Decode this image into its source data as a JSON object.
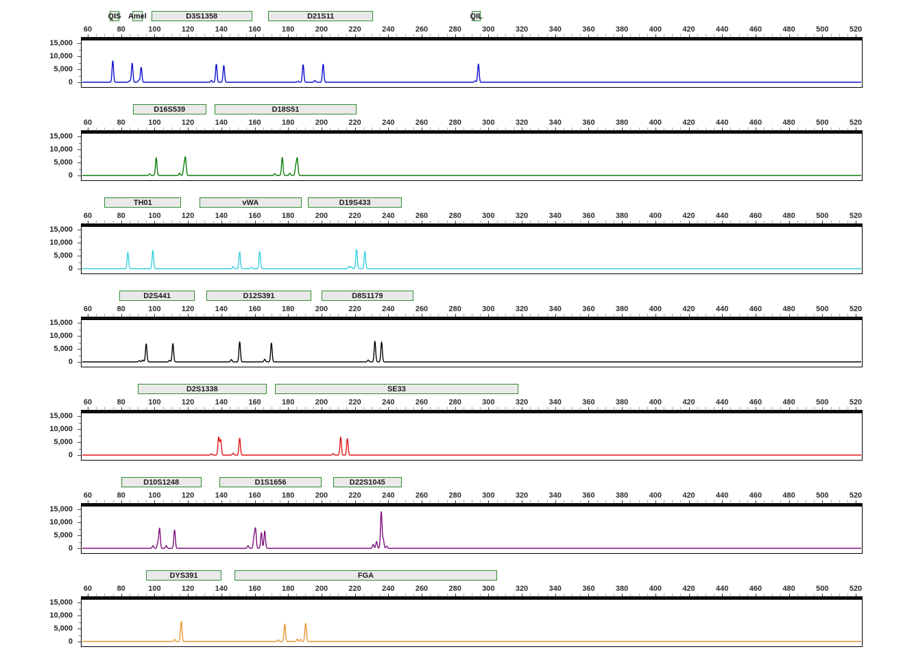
{
  "y_axis": {
    "max": 15000,
    "major_interval": 5000,
    "minor_interval": 2500,
    "labels": [
      "15,000",
      "10,000",
      "5,000",
      "0"
    ]
  },
  "x_axis": {
    "min": 60,
    "max": 520,
    "major_interval": 20,
    "minor_interval": 5,
    "labels": [
      "60",
      "80",
      "100",
      "120",
      "140",
      "160",
      "180",
      "200",
      "220",
      "240",
      "260",
      "280",
      "300",
      "320",
      "340",
      "360",
      "380",
      "400",
      "420",
      "440",
      "460",
      "480",
      "500",
      "520"
    ]
  },
  "styles": {
    "marker_fill": "#e9e9e9",
    "marker_border": "#2e8b2e",
    "axis_bar": "#0e0e0e"
  },
  "chart_data": [
    {
      "type": "line",
      "name": "dye-blue",
      "color": "#0a0acd",
      "markers": [
        {
          "label": "QIS",
          "start": 73,
          "end": 79
        },
        {
          "label": "Amel",
          "start": 86.5,
          "end": 93
        },
        {
          "label": "D3S1358",
          "start": 98,
          "end": 158.5
        },
        {
          "label": "D21S11",
          "start": 168,
          "end": 231
        },
        {
          "label": "QIL",
          "start": 290,
          "end": 295.5
        }
      ],
      "peaks": [
        [
          75,
          8200
        ],
        [
          85,
          500
        ],
        [
          86.6,
          7300
        ],
        [
          90.6,
          800
        ],
        [
          92,
          5700
        ],
        [
          134,
          700
        ],
        [
          137,
          6900
        ],
        [
          141.5,
          6400
        ],
        [
          186,
          400
        ],
        [
          189,
          6700
        ],
        [
          196,
          700
        ],
        [
          201,
          6900
        ],
        [
          292,
          500
        ],
        [
          294,
          7000
        ]
      ]
    },
    {
      "type": "line",
      "name": "dye-green",
      "color": "#0a7d0a",
      "markers": [
        {
          "label": "D16S539",
          "start": 87,
          "end": 131
        },
        {
          "label": "D18S51",
          "start": 136,
          "end": 221
        }
      ],
      "peaks": [
        [
          97,
          600
        ],
        [
          101,
          6800
        ],
        [
          115,
          900
        ],
        [
          117.6,
          3200
        ],
        [
          118.5,
          6700
        ],
        [
          172,
          700
        ],
        [
          176.5,
          6900
        ],
        [
          181,
          900
        ],
        [
          184.6,
          3400
        ],
        [
          185.5,
          6300
        ]
      ]
    },
    {
      "type": "line",
      "name": "dye-cyan",
      "color": "#35cfe0",
      "markers": [
        {
          "label": "TH01",
          "start": 70,
          "end": 116
        },
        {
          "label": "vWA",
          "start": 127,
          "end": 188
        },
        {
          "label": "D19S433",
          "start": 192,
          "end": 248
        }
      ],
      "peaks": [
        [
          84,
          6200
        ],
        [
          99,
          7000
        ],
        [
          147,
          800
        ],
        [
          151,
          6400
        ],
        [
          158,
          500
        ],
        [
          163,
          6600
        ],
        [
          216.5,
          900
        ],
        [
          218,
          700
        ],
        [
          221,
          7400
        ],
        [
          226,
          6600
        ]
      ]
    },
    {
      "type": "line",
      "name": "dye-black",
      "color": "#000000",
      "markers": [
        {
          "label": "D2S441",
          "start": 79,
          "end": 124
        },
        {
          "label": "D12S391",
          "start": 131,
          "end": 194
        },
        {
          "label": "D8S1179",
          "start": 200,
          "end": 255
        }
      ],
      "peaks": [
        [
          91,
          500
        ],
        [
          93,
          700
        ],
        [
          95,
          6900
        ],
        [
          109,
          600
        ],
        [
          111,
          7000
        ],
        [
          146,
          900
        ],
        [
          151,
          7700
        ],
        [
          166,
          1000
        ],
        [
          170,
          7200
        ],
        [
          228,
          700
        ],
        [
          232,
          7900
        ],
        [
          236,
          7600
        ]
      ]
    },
    {
      "type": "line",
      "name": "dye-red",
      "color": "#e11212",
      "markers": [
        {
          "label": "D2S1338",
          "start": 90,
          "end": 167
        },
        {
          "label": "SE33",
          "start": 172,
          "end": 318
        }
      ],
      "peaks": [
        [
          134,
          500
        ],
        [
          138.4,
          6800
        ],
        [
          139.6,
          5800
        ],
        [
          147,
          700
        ],
        [
          151,
          6500
        ],
        [
          207,
          600
        ],
        [
          211.5,
          6900
        ],
        [
          215.5,
          6300
        ]
      ]
    },
    {
      "type": "line",
      "name": "dye-purple",
      "color": "#7d0c7d",
      "markers": [
        {
          "label": "D10S1248",
          "start": 80,
          "end": 128
        },
        {
          "label": "D1S1656",
          "start": 139,
          "end": 200
        },
        {
          "label": "D22S1045",
          "start": 207,
          "end": 248
        }
      ],
      "peaks": [
        [
          99,
          1000
        ],
        [
          102,
          2000
        ],
        [
          103,
          7600
        ],
        [
          107,
          1000
        ],
        [
          112,
          7000
        ],
        [
          156,
          1000
        ],
        [
          159.6,
          4200
        ],
        [
          160.5,
          7200
        ],
        [
          164,
          6000
        ],
        [
          166,
          6600
        ],
        [
          231,
          1500
        ],
        [
          233,
          2600
        ],
        [
          235.8,
          14000
        ],
        [
          237,
          3400
        ],
        [
          239,
          800
        ]
      ]
    },
    {
      "type": "line",
      "name": "dye-orange",
      "color": "#e9962f",
      "markers": [
        {
          "label": "DYS391",
          "start": 95,
          "end": 140
        },
        {
          "label": "FGA",
          "start": 148,
          "end": 305
        }
      ],
      "peaks": [
        [
          112,
          800
        ],
        [
          116,
          7700
        ],
        [
          174,
          600
        ],
        [
          178,
          6700
        ],
        [
          185.5,
          900
        ],
        [
          187.5,
          800
        ],
        [
          190.5,
          7000
        ]
      ]
    }
  ]
}
